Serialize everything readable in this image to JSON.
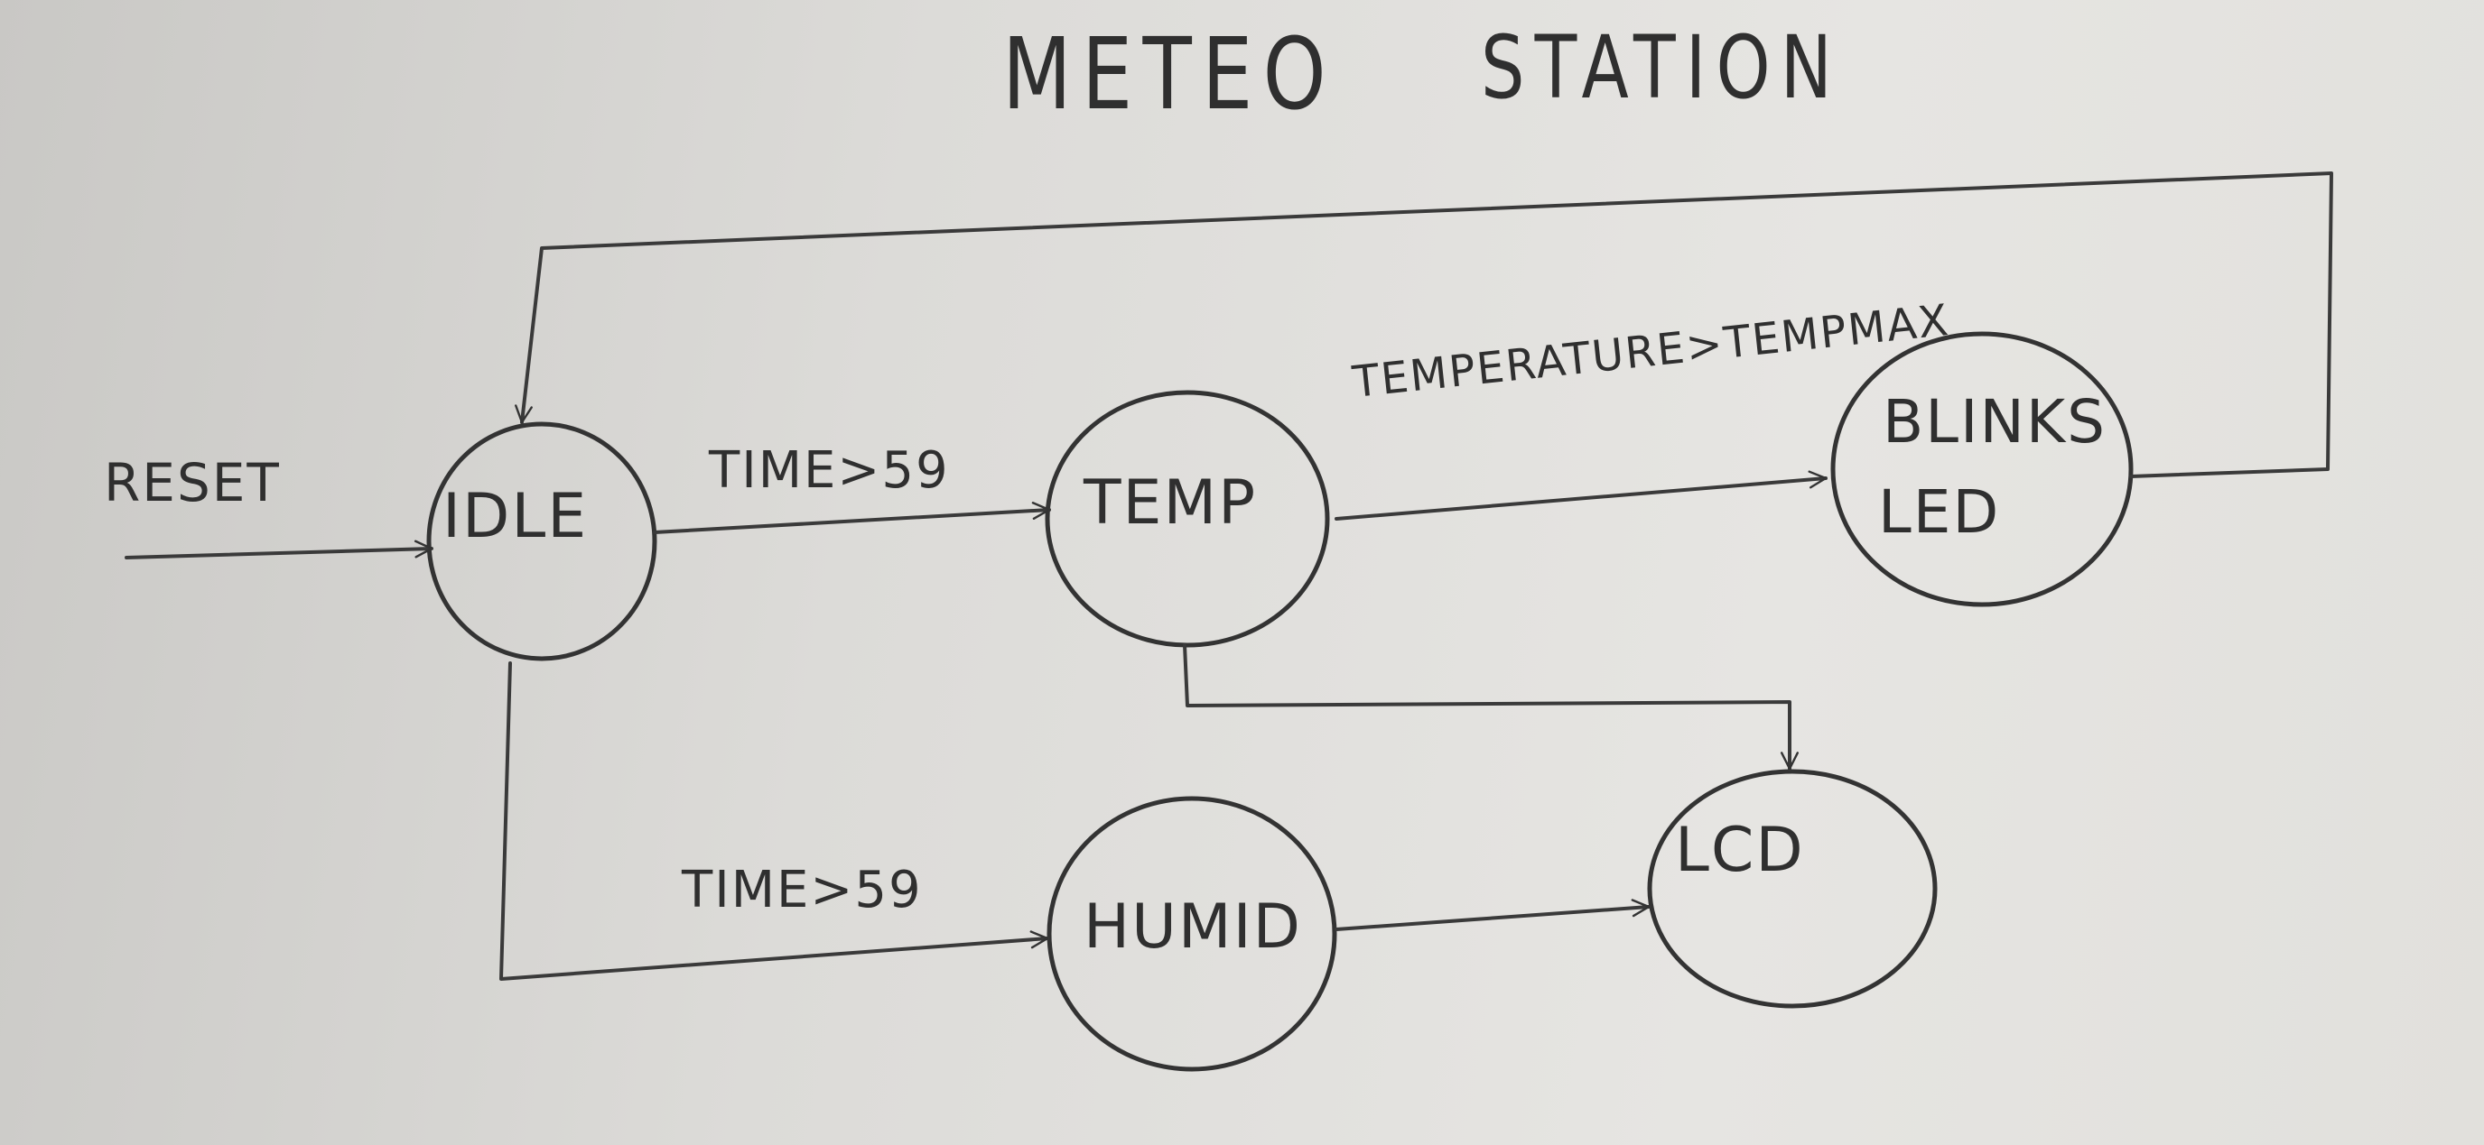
{
  "diagram": {
    "title_left": "METEO",
    "title_right": "STATION",
    "states": {
      "idle": "IDLE",
      "temp": "TEMP",
      "humid": "HUMID",
      "blinks_line1": "BLINKS",
      "blinks_line2": "LED",
      "lcd": "LCD"
    },
    "transitions": {
      "reset": "RESET",
      "idle_to_temp": "TIME>59",
      "idle_to_humid": "TIME>59",
      "temp_to_blinks": "TEMPERATURE>TEMPMAX"
    },
    "colors": {
      "pencil": "#333333",
      "paper": "#e2e1de"
    }
  }
}
